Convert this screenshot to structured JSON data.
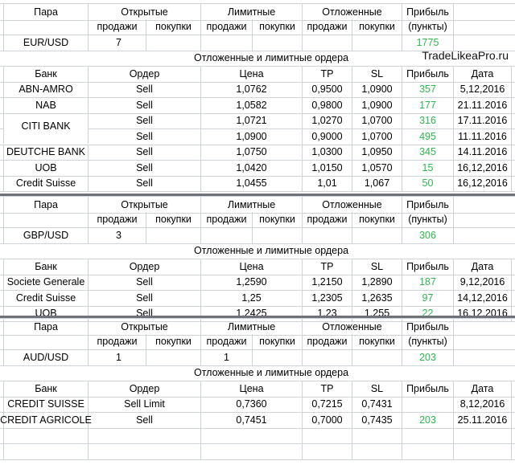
{
  "labels": {
    "pair": "Пара",
    "open": "Открытые",
    "limit": "Лимитные",
    "pending": "Отложенные",
    "profit": "Прибыль",
    "sales": "продажи",
    "buys": "покупки",
    "points": "(пункты)",
    "orders_title": "Отложенные и лимитные ордера",
    "bank": "Банк",
    "order": "Ордер",
    "price": "Цена",
    "tp": "TP",
    "sl": "SL",
    "date": "Дата"
  },
  "watermark": "TradeLikeaPro.ru",
  "blocks": [
    {
      "pair": "EUR/USD",
      "open_sales": "7",
      "open_buys": "",
      "limit_sales": "",
      "limit_buys": "",
      "pending_sales": "",
      "pending_buys": "",
      "profit": "1775",
      "rows": [
        {
          "bank": "ABN-AMRO",
          "order": "Sell",
          "price": "1,0762",
          "tp": "0,9500",
          "sl": "1,0900",
          "profit": "357",
          "date": "5,12,2016"
        },
        {
          "bank": "NAB",
          "order": "Sell",
          "price": "1,0582",
          "tp": "0,9800",
          "sl": "1,0900",
          "profit": "177",
          "date": "21.11.2016"
        },
        {
          "bank": "",
          "order": "Sell",
          "price": "1,0721",
          "tp": "1,0270",
          "sl": "1,0700",
          "profit": "316",
          "date": "17.11.2016"
        },
        {
          "bank": "CITI BANK",
          "order": "Sell",
          "price": "1,0900",
          "tp": "0,9000",
          "sl": "1,0700",
          "profit": "495",
          "date": "11.11.2016"
        },
        {
          "bank": "DEUTCHE BANK",
          "order": "Sell",
          "price": "1,0750",
          "tp": "1,0300",
          "sl": "1,0950",
          "profit": "345",
          "date": "14.11.2016"
        },
        {
          "bank": "UOB",
          "order": "Sell",
          "price": "1,0420",
          "tp": "1,0150",
          "sl": "1,0570",
          "profit": "15",
          "date": "16,12,2016"
        },
        {
          "bank": "Credit Suisse",
          "order": "Sell",
          "price": "1,0455",
          "tp": "1,01",
          "sl": "1,067",
          "profit": "50",
          "date": "16,12,2016"
        }
      ]
    },
    {
      "pair": "GBP/USD",
      "open_sales": "3",
      "open_buys": "",
      "limit_sales": "",
      "limit_buys": "",
      "pending_sales": "",
      "pending_buys": "",
      "profit": "306",
      "rows": [
        {
          "bank": "Societe Generale",
          "order": "Sell",
          "price": "1,2590",
          "tp": "1,2150",
          "sl": "1,2890",
          "profit": "187",
          "date": "9,12,2016"
        },
        {
          "bank": "Credit Suisse",
          "order": "Sell",
          "price": "1,25",
          "tp": "1,2305",
          "sl": "1,2635",
          "profit": "97",
          "date": "14,12,2016"
        },
        {
          "bank": "UOB",
          "order": "Sell",
          "price": "1,2425",
          "tp": "1,23",
          "sl": "1,255",
          "profit": "22",
          "date": "16,12,2016"
        }
      ]
    },
    {
      "pair": "AUD/USD",
      "open_sales": "1",
      "open_buys": "",
      "limit_sales": "1",
      "limit_buys": "",
      "pending_sales": "",
      "pending_buys": "",
      "profit": "203",
      "rows": [
        {
          "bank": "CREDIT SUISSE",
          "order": "Sell Limit",
          "price": "0,7360",
          "tp": "0,7215",
          "sl": "0,7431",
          "profit": "",
          "date": "8,12,2016"
        },
        {
          "bank": "CREDIT AGRICOLE",
          "order": "Sell",
          "price": "0,7451",
          "tp": "0,7000",
          "sl": "0,7435",
          "profit": "203",
          "date": "25.11.2016"
        }
      ]
    }
  ]
}
